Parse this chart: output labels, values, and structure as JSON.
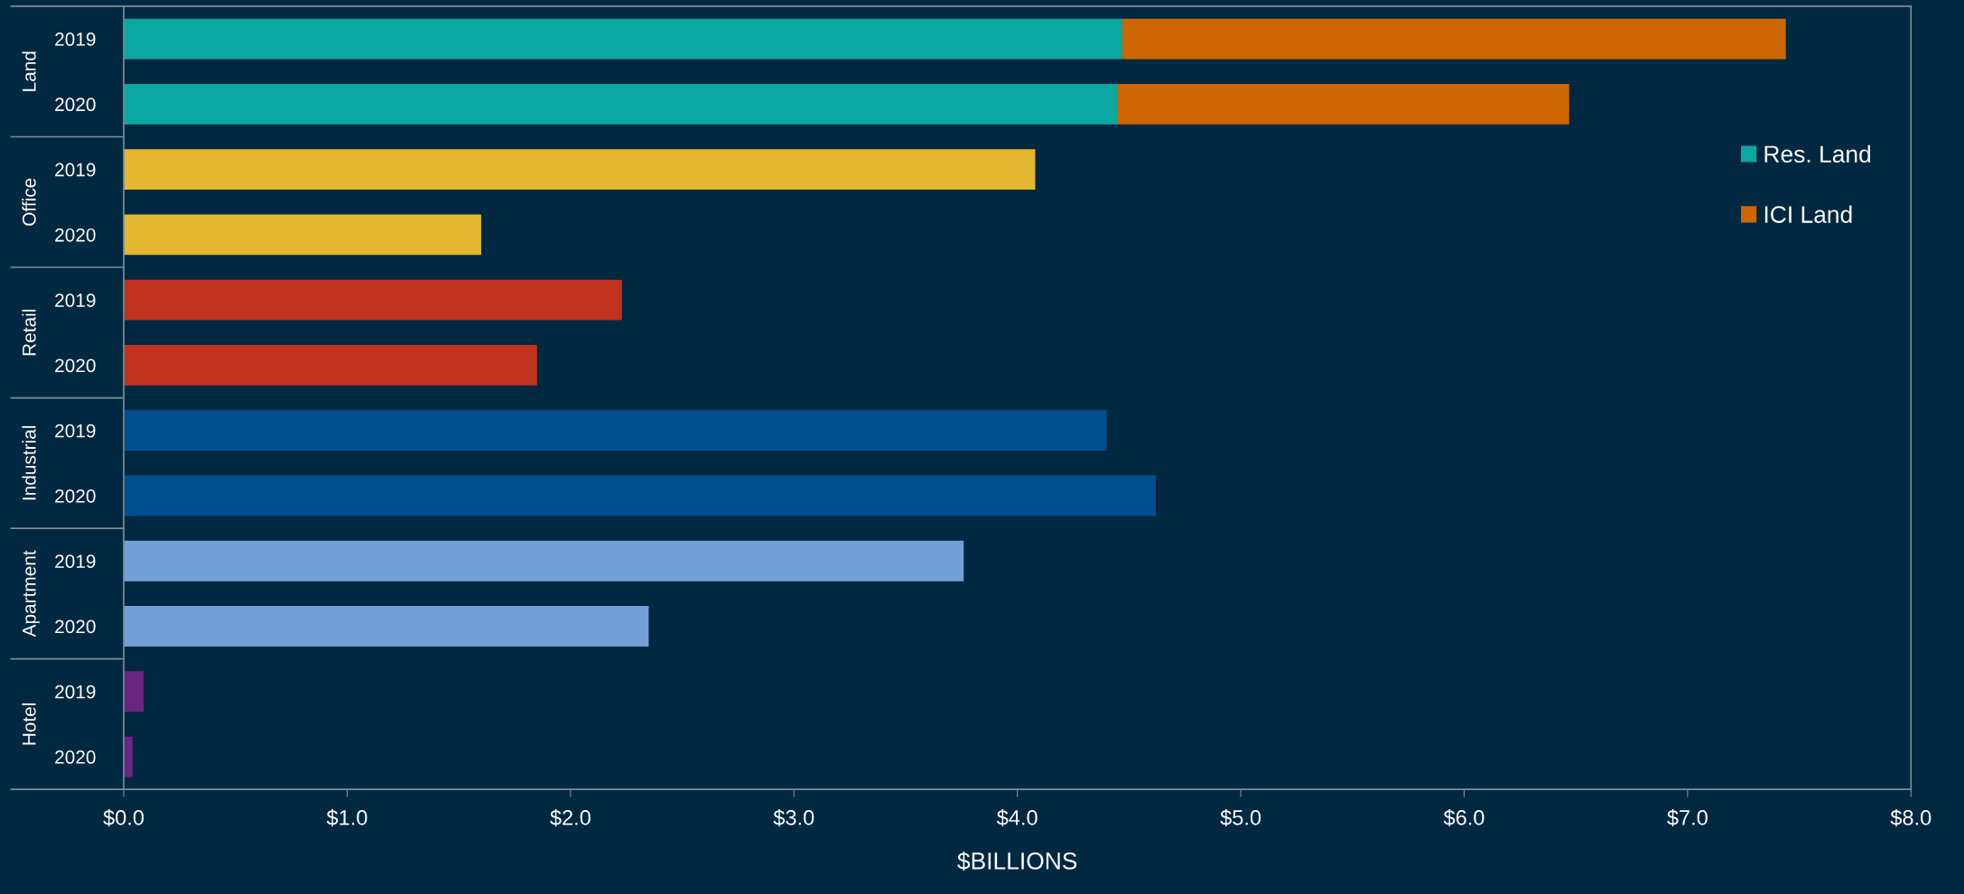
{
  "chart_data": {
    "type": "bar",
    "orientation": "horizontal",
    "stacked": true,
    "categories": [
      "2019",
      "2020",
      "2019",
      "2020",
      "2019",
      "2020",
      "2019",
      "2020",
      "2019",
      "2020",
      "2019",
      "2020"
    ],
    "annotations": [
      "Land",
      "Office",
      "Retail",
      "Industrial",
      "Apartment",
      "Hotel"
    ],
    "series": [
      {
        "name": "Res. Land",
        "color": "#0aa8a0",
        "values": [
          4.47,
          4.45,
          null,
          null,
          null,
          null,
          null,
          null,
          null,
          null,
          null,
          null
        ]
      },
      {
        "name": "ICI Land",
        "color": "#cc6600",
        "values": [
          2.97,
          2.02,
          null,
          null,
          null,
          null,
          null,
          null,
          null,
          null,
          null,
          null
        ]
      },
      {
        "color": "#e3b830",
        "values": [
          null,
          null,
          4.08,
          1.6,
          null,
          null,
          null,
          null,
          null,
          null,
          null,
          null
        ]
      },
      {
        "color": "#c0321e",
        "values": [
          null,
          null,
          null,
          null,
          2.23,
          1.85,
          null,
          null,
          null,
          null,
          null,
          null
        ]
      },
      {
        "color": "#004f8f",
        "values": [
          null,
          null,
          null,
          null,
          null,
          null,
          4.4,
          4.62,
          null,
          null,
          null,
          null
        ]
      },
      {
        "color": "#729fd6",
        "values": [
          null,
          null,
          null,
          null,
          null,
          null,
          null,
          null,
          3.76,
          2.35,
          null,
          null
        ]
      },
      {
        "color": "#6a2580",
        "values": [
          null,
          null,
          null,
          null,
          null,
          null,
          null,
          null,
          null,
          null,
          0.09,
          0.04
        ]
      }
    ],
    "xlabel": "$BILLIONS",
    "xlim": [
      0,
      8
    ],
    "xticks": [
      {
        "value": 0,
        "label": "$0.0"
      },
      {
        "value": 1,
        "label": "$1.0"
      },
      {
        "value": 2,
        "label": "$2.0"
      },
      {
        "value": 3,
        "label": "$3.0"
      },
      {
        "value": 4,
        "label": "$4.0"
      },
      {
        "value": 5,
        "label": "$5.0"
      },
      {
        "value": 6,
        "label": "$6.0"
      },
      {
        "value": 7,
        "label": "$7.0"
      },
      {
        "value": 8,
        "label": "$8.0"
      }
    ],
    "legend": "right",
    "grid": false
  }
}
